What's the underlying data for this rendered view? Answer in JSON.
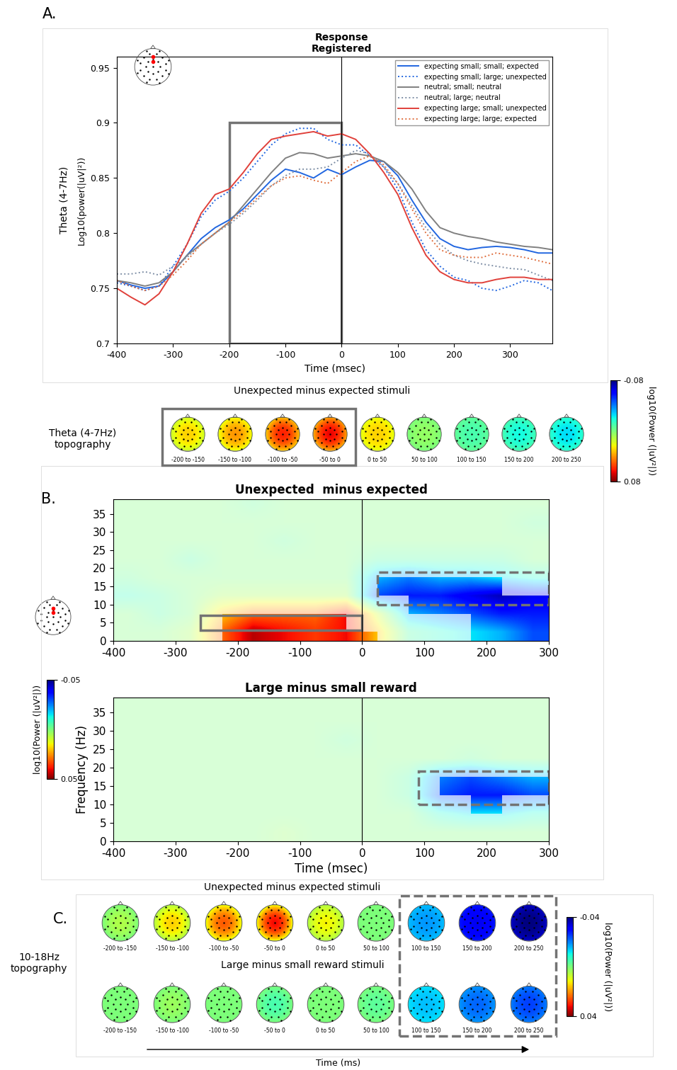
{
  "panel_labels": [
    "A.",
    "B.",
    "C."
  ],
  "chart_data": [
    {
      "type": "line",
      "annotation": "Response\nRegistered",
      "xlabel": "Time (msec)",
      "ylabel": "Log10(power(|uV|²))",
      "ylabel_band": "Theta (4-7Hz)",
      "x": [
        -400,
        -375,
        -350,
        -325,
        -300,
        -275,
        -250,
        -225,
        -200,
        -175,
        -150,
        -125,
        -100,
        -75,
        -50,
        -25,
        0,
        25,
        50,
        75,
        100,
        125,
        150,
        175,
        200,
        225,
        250,
        275,
        300,
        325,
        350,
        375
      ],
      "xlim": [
        -400,
        375
      ],
      "xticks": [
        -400,
        -300,
        -200,
        -100,
        0,
        100,
        200,
        300
      ],
      "ylim": [
        0.7,
        0.96
      ],
      "yticks": [
        0.7,
        0.75,
        0.8,
        0.85,
        0.9,
        0.95
      ],
      "legend": "upper right",
      "vline": 0,
      "box": {
        "x": [
          -200,
          0
        ],
        "y": [
          0.7,
          0.9
        ]
      },
      "series": [
        {
          "name": "expecting small; small; expected",
          "color": "#2166e0",
          "line_style": "solid",
          "values": [
            0.757,
            0.753,
            0.75,
            0.752,
            0.765,
            0.78,
            0.795,
            0.805,
            0.812,
            0.822,
            0.835,
            0.848,
            0.858,
            0.855,
            0.85,
            0.858,
            0.853,
            0.86,
            0.866,
            0.865,
            0.852,
            0.83,
            0.81,
            0.795,
            0.788,
            0.785,
            0.787,
            0.788,
            0.787,
            0.785,
            0.782,
            0.782
          ]
        },
        {
          "name": "expecting small; large; unexpected",
          "color": "#2166e0",
          "line_style": "dotted",
          "values": [
            0.755,
            0.752,
            0.748,
            0.752,
            0.77,
            0.79,
            0.815,
            0.83,
            0.838,
            0.85,
            0.865,
            0.88,
            0.89,
            0.895,
            0.895,
            0.885,
            0.88,
            0.88,
            0.87,
            0.86,
            0.84,
            0.81,
            0.785,
            0.77,
            0.76,
            0.757,
            0.75,
            0.748,
            0.752,
            0.757,
            0.755,
            0.748
          ]
        },
        {
          "name": "neutral; small; neutral",
          "color": "#808080",
          "line_style": "solid",
          "values": [
            0.757,
            0.755,
            0.752,
            0.755,
            0.765,
            0.78,
            0.79,
            0.8,
            0.81,
            0.825,
            0.84,
            0.855,
            0.868,
            0.873,
            0.872,
            0.868,
            0.87,
            0.872,
            0.87,
            0.865,
            0.855,
            0.84,
            0.82,
            0.805,
            0.8,
            0.797,
            0.795,
            0.792,
            0.79,
            0.788,
            0.787,
            0.785
          ]
        },
        {
          "name": "neutral; large; neutral",
          "color": "#7f8fa6",
          "line_style": "dotted",
          "values": [
            0.763,
            0.763,
            0.765,
            0.762,
            0.77,
            0.778,
            0.79,
            0.8,
            0.808,
            0.818,
            0.83,
            0.843,
            0.852,
            0.858,
            0.858,
            0.86,
            0.868,
            0.875,
            0.872,
            0.86,
            0.845,
            0.825,
            0.805,
            0.79,
            0.78,
            0.775,
            0.772,
            0.77,
            0.768,
            0.767,
            0.762,
            0.757
          ]
        },
        {
          "name": "expecting large; small; unexpected",
          "color": "#e0403a",
          "line_style": "solid",
          "values": [
            0.75,
            0.742,
            0.735,
            0.745,
            0.765,
            0.79,
            0.818,
            0.835,
            0.84,
            0.855,
            0.872,
            0.885,
            0.888,
            0.89,
            0.892,
            0.888,
            0.89,
            0.885,
            0.872,
            0.855,
            0.835,
            0.805,
            0.78,
            0.765,
            0.758,
            0.755,
            0.755,
            0.758,
            0.76,
            0.76,
            0.758,
            0.758
          ]
        },
        {
          "name": "expecting large; large; expected",
          "color": "#e07040",
          "line_style": "dotted",
          "values": [
            0.757,
            0.752,
            0.748,
            0.752,
            0.762,
            0.775,
            0.79,
            0.8,
            0.81,
            0.82,
            0.832,
            0.843,
            0.85,
            0.852,
            0.848,
            0.845,
            0.855,
            0.865,
            0.87,
            0.862,
            0.845,
            0.822,
            0.8,
            0.785,
            0.78,
            0.778,
            0.778,
            0.782,
            0.78,
            0.778,
            0.775,
            0.772
          ]
        }
      ]
    },
    {
      "type": "topography",
      "row_label": "Theta (4-7Hz)\ntopography",
      "line_style": "solid",
      "colorbar": {
        "range": [
          -0.08,
          0.08
        ],
        "ticks": [
          -0.08,
          0.08
        ],
        "label": "log10(Power (|uV²|))"
      },
      "rows": [
        {
          "title": "Unexpected minus expected stimuli",
          "maps": [
            {
              "window": "-200 to -150",
              "center": 0.03,
              "edge": 0.015,
              "boxed": true
            },
            {
              "window": "-150 to -100",
              "center": 0.04,
              "edge": 0.02,
              "boxed": true
            },
            {
              "window": "-100 to -50",
              "center": 0.06,
              "edge": 0.03,
              "boxed": true
            },
            {
              "window": "-50 to 0",
              "center": 0.065,
              "edge": 0.035,
              "boxed": true
            },
            {
              "window": "0 to 50",
              "center": 0.03,
              "edge": 0.02,
              "boxed": false
            },
            {
              "window": "50 to 100",
              "center": 0.005,
              "edge": 0.0,
              "boxed": false
            },
            {
              "window": "100 to 150",
              "center": -0.01,
              "edge": -0.005,
              "boxed": false
            },
            {
              "window": "150 to 200",
              "center": -0.02,
              "edge": -0.01,
              "boxed": false
            },
            {
              "window": "200 to 250",
              "center": -0.025,
              "edge": -0.015,
              "boxed": false
            }
          ]
        }
      ]
    },
    {
      "type": "heatmap",
      "title": "Unexpected  minus expected",
      "vline": 0,
      "x_edges": [
        -400,
        -350,
        -300,
        -250,
        -200,
        -150,
        -100,
        -50,
        0,
        50,
        100,
        150,
        200,
        250,
        300
      ],
      "y_edges": [
        0,
        5,
        10,
        15,
        20,
        25,
        30,
        35,
        40
      ],
      "cells": [
        [
          0.0,
          0.0,
          0.005,
          0.03,
          0.045,
          0.04,
          0.035,
          0.04,
          0.02,
          -0.005,
          -0.01,
          -0.015,
          -0.02,
          -0.03
        ],
        [
          0.0,
          -0.005,
          0.0,
          0.02,
          0.03,
          0.03,
          0.03,
          0.04,
          0.01,
          -0.02,
          -0.025,
          -0.03,
          -0.035,
          -0.035
        ],
        [
          -0.008,
          -0.005,
          0.0,
          0.005,
          0.005,
          0.005,
          0.005,
          0.005,
          -0.03,
          -0.035,
          -0.035,
          -0.04,
          -0.045,
          -0.04
        ],
        [
          -0.003,
          0,
          0,
          0,
          0,
          0,
          0,
          0,
          -0.02,
          -0.025,
          -0.02,
          -0.02,
          -0.015,
          -0.01
        ],
        [
          0,
          0,
          -0.005,
          0,
          0,
          0,
          0,
          0,
          -0.005,
          -0.005,
          -0.005,
          -0.005,
          -0.005,
          0
        ],
        [
          0,
          0,
          0,
          0,
          0,
          -0.003,
          0,
          0,
          0,
          0,
          0,
          0,
          0,
          0
        ],
        [
          0,
          0,
          0,
          0,
          0,
          0,
          0,
          0,
          0,
          0,
          0,
          0,
          0,
          -0.003
        ],
        [
          0,
          0,
          0,
          0,
          -0.003,
          0,
          0,
          0,
          0,
          0,
          0,
          0,
          0,
          0
        ]
      ],
      "xlim": [
        -400,
        300
      ],
      "xticks": [
        -400,
        -300,
        -200,
        -100,
        0,
        100,
        200,
        300
      ],
      "ylim": [
        0,
        39
      ],
      "yticks": [
        0,
        5,
        10,
        15,
        20,
        25,
        30,
        35
      ],
      "boxes": [
        {
          "x": [
            -260,
            0
          ],
          "y": [
            3,
            7
          ],
          "line_style": "solid"
        },
        {
          "x": [
            25,
            300
          ],
          "y": [
            10,
            19
          ],
          "line_style": "dashed"
        }
      ]
    },
    {
      "type": "heatmap",
      "title": "Large minus small reward",
      "vline": 0,
      "xlabel": "Time (msec)",
      "ylabel": "Frequency (Hz)",
      "colorbar": {
        "range": [
          -0.05,
          0.05
        ],
        "ticks": [
          -0.05,
          0.05
        ],
        "label": "log10(Power (|uV²|))"
      },
      "x_edges": [
        -400,
        -350,
        -300,
        -250,
        -200,
        -150,
        -100,
        -50,
        0,
        50,
        100,
        150,
        200,
        250,
        300
      ],
      "y_edges": [
        0,
        5,
        10,
        15,
        20,
        25,
        30,
        35,
        40
      ],
      "cells": [
        [
          0,
          0,
          0,
          0,
          0,
          0.003,
          0,
          0,
          0,
          0,
          0,
          0,
          0,
          0
        ],
        [
          0,
          0,
          0,
          0,
          0,
          0,
          0,
          0,
          0,
          0,
          -0.01,
          -0.015,
          -0.015,
          -0.01
        ],
        [
          0,
          0,
          0,
          0,
          0,
          0,
          0,
          0,
          0,
          -0.005,
          -0.03,
          -0.035,
          -0.035,
          -0.03
        ],
        [
          0,
          0,
          0,
          0,
          0,
          0,
          0,
          0,
          0,
          -0.005,
          -0.025,
          -0.03,
          -0.025,
          -0.02
        ],
        [
          0,
          0,
          0,
          0,
          0,
          0,
          0,
          0,
          0,
          0,
          0,
          -0.003,
          0,
          0
        ],
        [
          0,
          0,
          0,
          0,
          0,
          0,
          0,
          -0.003,
          0,
          0,
          0,
          0,
          0,
          0
        ],
        [
          0,
          0,
          0,
          0,
          0,
          0,
          0,
          0,
          0,
          0,
          0,
          0,
          0,
          0
        ],
        [
          0,
          0,
          0,
          0,
          0,
          0,
          0,
          0,
          0,
          0,
          0,
          0,
          0,
          0
        ]
      ],
      "xlim": [
        -400,
        300
      ],
      "xticks": [
        -400,
        -300,
        -200,
        -100,
        0,
        100,
        200,
        300
      ],
      "ylim": [
        0,
        39
      ],
      "yticks": [
        0,
        5,
        10,
        15,
        20,
        25,
        30,
        35
      ],
      "boxes": [
        {
          "x": [
            90,
            300
          ],
          "y": [
            10,
            19
          ],
          "line_style": "dashed"
        }
      ]
    },
    {
      "type": "topography",
      "row_label": "10-18Hz\ntopography",
      "line_style": "dashed",
      "xlabel": "Time (ms)",
      "colorbar": {
        "range": [
          -0.04,
          0.04
        ],
        "ticks": [
          -0.04,
          0.04
        ],
        "label": "log10(Power (|uV²|))"
      },
      "rows": [
        {
          "title": "Unexpected minus expected stimuli",
          "maps": [
            {
              "window": "-200 to -150",
              "center": 0.005,
              "edge": 0.0,
              "boxed": false
            },
            {
              "window": "-150 to -100",
              "center": 0.015,
              "edge": 0.005,
              "boxed": false
            },
            {
              "window": "-100 to -50",
              "center": 0.025,
              "edge": 0.01,
              "boxed": false
            },
            {
              "window": "-50 to 0",
              "center": 0.032,
              "edge": 0.01,
              "boxed": false
            },
            {
              "window": "0 to 50",
              "center": 0.012,
              "edge": 0.005,
              "boxed": false
            },
            {
              "window": "50 to 100",
              "center": 0.0,
              "edge": 0.0,
              "boxed": false
            },
            {
              "window": "100 to 150",
              "center": -0.018,
              "edge": -0.015,
              "boxed": true
            },
            {
              "window": "150 to 200",
              "center": -0.032,
              "edge": -0.028,
              "boxed": true
            },
            {
              "window": "200 to 250",
              "center": -0.04,
              "edge": -0.035,
              "boxed": true
            }
          ]
        },
        {
          "title": "Large minus small reward stimuli",
          "maps": [
            {
              "window": "-200 to -150",
              "center": 0.0,
              "edge": 0.0,
              "boxed": false
            },
            {
              "window": "-150 to -100",
              "center": 0.003,
              "edge": 0.0,
              "boxed": false
            },
            {
              "window": "-100 to -50",
              "center": 0.0,
              "edge": 0.0,
              "boxed": false
            },
            {
              "window": "-50 to 0",
              "center": -0.005,
              "edge": 0.0,
              "boxed": false
            },
            {
              "window": "0 to 50",
              "center": 0.0,
              "edge": 0.0,
              "boxed": false
            },
            {
              "window": "50 to 100",
              "center": -0.003,
              "edge": 0.0,
              "boxed": false
            },
            {
              "window": "100 to 150",
              "center": -0.015,
              "edge": -0.012,
              "boxed": true
            },
            {
              "window": "150 to 200",
              "center": -0.022,
              "edge": -0.018,
              "boxed": true
            },
            {
              "window": "200 to 250",
              "center": -0.025,
              "edge": -0.02,
              "boxed": true
            }
          ]
        }
      ]
    }
  ]
}
